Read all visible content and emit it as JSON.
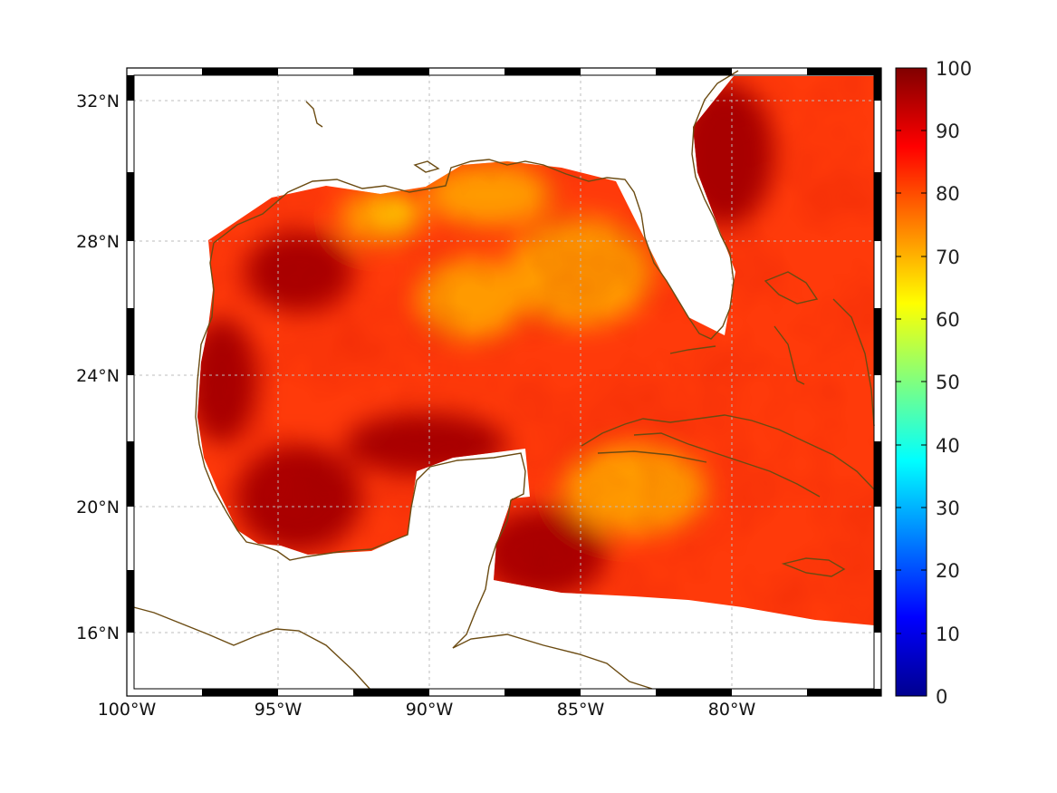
{
  "map": {
    "lon_ticks": [
      "100°W",
      "95°W",
      "90°W",
      "85°W",
      "80°W"
    ],
    "lat_ticks": [
      "32°N",
      "28°N",
      "24°N",
      "20°N",
      "16°N"
    ],
    "lon_range": [
      -100,
      -75
    ],
    "lat_range": [
      14.2,
      33
    ],
    "grid": true,
    "coastline_color": "#6b4b12"
  },
  "colorbar": {
    "labels": [
      "100",
      "90",
      "80",
      "70",
      "60",
      "50",
      "40",
      "30",
      "20",
      "10",
      "0"
    ],
    "range": [
      0,
      100
    ],
    "colormap": "jet"
  },
  "field": {
    "low_color": "#ff9a00",
    "mid_color": "#ff3a0a",
    "high_color": "#a80000"
  }
}
